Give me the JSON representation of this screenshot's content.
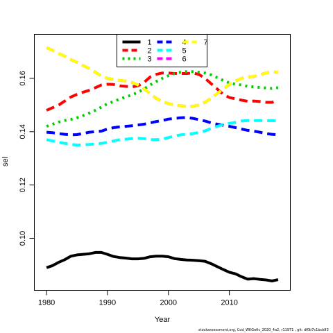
{
  "chart_data": {
    "type": "line",
    "title": "",
    "xlabel": "Year",
    "ylabel": "sel",
    "xlim": [
      1978,
      2020
    ],
    "ylim": [
      0.0805,
      0.1765
    ],
    "x_ticks": [
      1980,
      1990,
      2000,
      2010
    ],
    "y_ticks": [
      0.1,
      0.12,
      0.14,
      0.16
    ],
    "y_tick_labels": [
      "0.10",
      "0.12",
      "0.14",
      "0.16"
    ],
    "grid": false,
    "legend_position": "top-center",
    "legend_columns": [
      [
        "1",
        "2",
        "3"
      ],
      [
        "4",
        "5",
        "6"
      ],
      [
        "7"
      ]
    ],
    "x": [
      1980,
      1981,
      1982,
      1983,
      1984,
      1985,
      1986,
      1987,
      1988,
      1989,
      1990,
      1991,
      1992,
      1993,
      1994,
      1995,
      1996,
      1997,
      1998,
      1999,
      2000,
      2001,
      2002,
      2003,
      2004,
      2005,
      2006,
      2007,
      2008,
      2009,
      2010,
      2011,
      2012,
      2013,
      2014,
      2015,
      2016,
      2017,
      2018
    ],
    "series": [
      {
        "name": "1",
        "color": "#000000",
        "dash": "solid",
        "values": [
          0.089,
          0.0898,
          0.091,
          0.092,
          0.0933,
          0.0938,
          0.094,
          0.0942,
          0.0947,
          0.0947,
          0.094,
          0.0932,
          0.0928,
          0.0926,
          0.0923,
          0.0923,
          0.0925,
          0.0931,
          0.0933,
          0.0933,
          0.0931,
          0.0924,
          0.0921,
          0.0919,
          0.0918,
          0.0916,
          0.0914,
          0.0905,
          0.0894,
          0.0883,
          0.0873,
          0.0867,
          0.0856,
          0.0847,
          0.0849,
          0.0846,
          0.0844,
          0.084,
          0.0845
        ]
      },
      {
        "name": "2",
        "color": "#ff0000",
        "dash": "dashed",
        "values": [
          0.148,
          0.149,
          0.15,
          0.1515,
          0.153,
          0.154,
          0.1548,
          0.1555,
          0.1565,
          0.1575,
          0.1578,
          0.1577,
          0.1572,
          0.157,
          0.1568,
          0.1572,
          0.1585,
          0.1605,
          0.1615,
          0.162,
          0.162,
          0.1618,
          0.1618,
          0.1618,
          0.162,
          0.1615,
          0.16,
          0.158,
          0.156,
          0.154,
          0.1528,
          0.1523,
          0.1518,
          0.1514,
          0.1515,
          0.1513,
          0.151,
          0.151,
          0.1517
        ]
      },
      {
        "name": "3",
        "color": "#00cd00",
        "dash": "dotted",
        "values": [
          0.142,
          0.1428,
          0.1436,
          0.1442,
          0.1446,
          0.1452,
          0.146,
          0.147,
          0.148,
          0.1492,
          0.1505,
          0.1513,
          0.1522,
          0.153,
          0.1538,
          0.1548,
          0.156,
          0.1575,
          0.1588,
          0.16,
          0.161,
          0.1618,
          0.1623,
          0.1625,
          0.1625,
          0.1623,
          0.162,
          0.1613,
          0.1603,
          0.1592,
          0.1583,
          0.1578,
          0.1575,
          0.157,
          0.1568,
          0.1566,
          0.1564,
          0.1562,
          0.1565
        ]
      },
      {
        "name": "4",
        "color": "#0000ff",
        "dash": "dashed",
        "values": [
          0.1398,
          0.1396,
          0.1393,
          0.139,
          0.1388,
          0.1389,
          0.1393,
          0.1398,
          0.14,
          0.1402,
          0.141,
          0.1415,
          0.1418,
          0.142,
          0.1422,
          0.1425,
          0.1428,
          0.1433,
          0.1438,
          0.1442,
          0.1447,
          0.145,
          0.1452,
          0.1453,
          0.145,
          0.1445,
          0.144,
          0.1433,
          0.1428,
          0.1424,
          0.142,
          0.1415,
          0.141,
          0.1405,
          0.1402,
          0.1398,
          0.1393,
          0.139,
          0.1388
        ]
      },
      {
        "name": "5",
        "color": "#00ffff",
        "dash": "dashed",
        "values": [
          0.137,
          0.1365,
          0.136,
          0.1356,
          0.1352,
          0.135,
          0.135,
          0.1352,
          0.1354,
          0.1356,
          0.136,
          0.1365,
          0.137,
          0.1372,
          0.1374,
          0.1375,
          0.1374,
          0.137,
          0.137,
          0.1372,
          0.1378,
          0.1384,
          0.1388,
          0.139,
          0.1393,
          0.1397,
          0.1403,
          0.1412,
          0.142,
          0.1427,
          0.1431,
          0.1435,
          0.144,
          0.1442,
          0.1442,
          0.1442,
          0.1441,
          0.1442,
          0.144
        ]
      },
      {
        "name": "6",
        "color": "#ff00ff",
        "dash": "dashed",
        "values": [
          0.1715,
          0.1705,
          0.1693,
          0.1683,
          0.167,
          0.166,
          0.1648,
          0.1637,
          0.1623,
          0.1608,
          0.16,
          0.1596,
          0.1592,
          0.159,
          0.1585,
          0.1575,
          0.156,
          0.1543,
          0.1525,
          0.1513,
          0.1505,
          0.15,
          0.1497,
          0.1495,
          0.1495,
          0.15,
          0.151,
          0.1525,
          0.1543,
          0.156,
          0.1577,
          0.159,
          0.16,
          0.1605,
          0.1607,
          0.1613,
          0.162,
          0.1625,
          0.1622
        ]
      },
      {
        "name": "7",
        "color": "#ffff00",
        "dash": "dashed",
        "values": [
          0.1715,
          0.1705,
          0.1693,
          0.1683,
          0.167,
          0.166,
          0.1648,
          0.1637,
          0.1623,
          0.1608,
          0.16,
          0.1596,
          0.1592,
          0.159,
          0.1585,
          0.1575,
          0.156,
          0.1543,
          0.1525,
          0.1513,
          0.1505,
          0.15,
          0.1497,
          0.1495,
          0.1495,
          0.15,
          0.151,
          0.1525,
          0.1543,
          0.156,
          0.1577,
          0.159,
          0.16,
          0.1605,
          0.1607,
          0.1613,
          0.162,
          0.1625,
          0.1622
        ]
      }
    ]
  },
  "footer_note": "stockassessment.org,  Cod_WKGefic_2020_4a2, r11971 ,  git: df0b7c1bcb83"
}
